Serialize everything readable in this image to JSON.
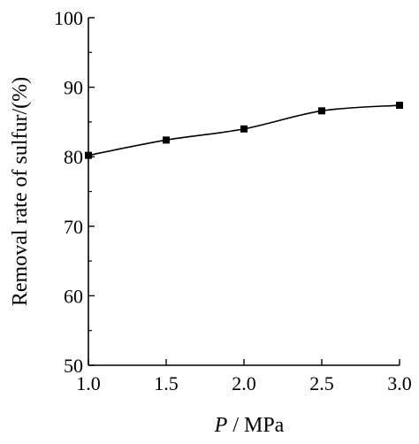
{
  "chart_data": {
    "type": "line",
    "x": [
      1.0,
      1.5,
      2.0,
      2.5,
      3.0
    ],
    "series": [
      {
        "values": [
          80.2,
          82.4,
          84.0,
          86.6,
          87.4
        ]
      }
    ],
    "xlim": [
      1.0,
      3.0
    ],
    "ylim": [
      50,
      100
    ],
    "xticks": [
      "1.0",
      "1.5",
      "2.0",
      "2.5",
      "3.0"
    ],
    "yticks": [
      "50",
      "60",
      "70",
      "80",
      "90",
      "100"
    ],
    "xlabel_var": "P",
    "xlabel_unit": " / MPa",
    "ylabel": "Removal rate of sulfur/(%)",
    "grid": false,
    "marker": "square",
    "color": "#000000"
  }
}
